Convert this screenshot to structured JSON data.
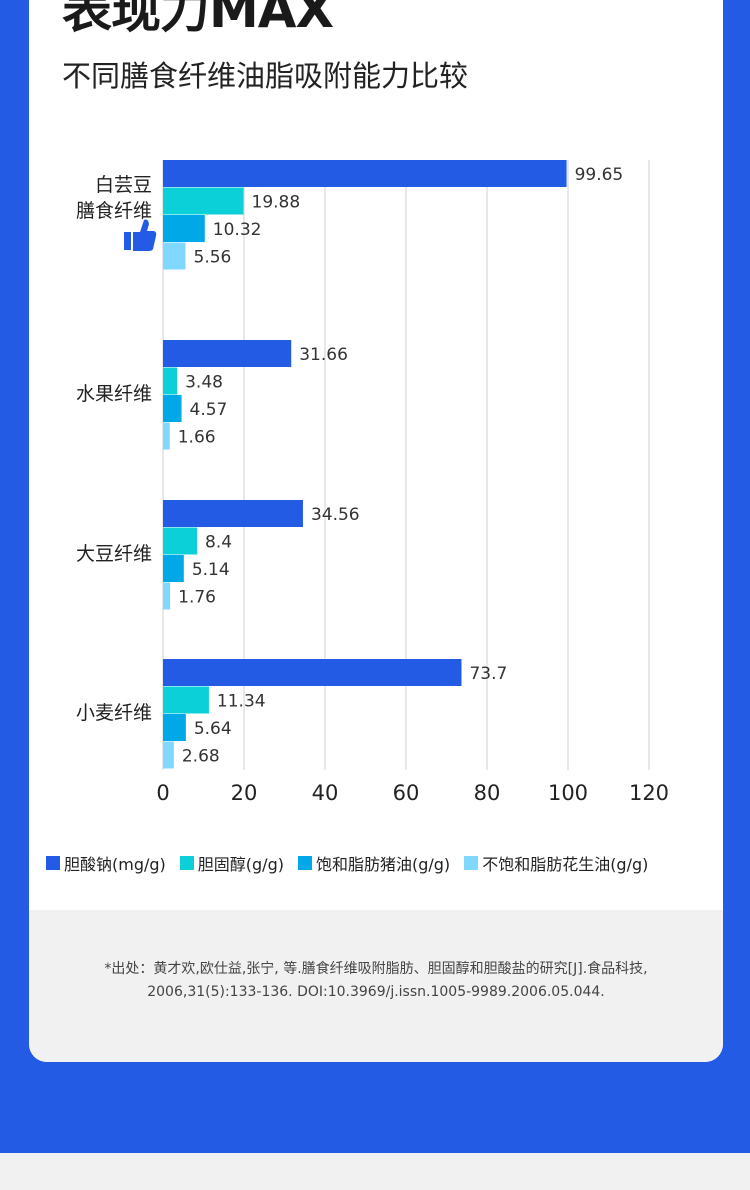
{
  "header": {
    "title": "表现力MAX",
    "subtitle": "不同膳食纤维油脂吸附能力比较"
  },
  "colors": {
    "background": "#245be4",
    "series": [
      "#245be4",
      "#0cd0d8",
      "#00a8e8",
      "#80d8ff"
    ]
  },
  "chart_data": {
    "type": "bar",
    "orientation": "horizontal",
    "categories": [
      "白芸豆膳食纤维",
      "水果纤维",
      "大豆纤维",
      "小麦纤维"
    ],
    "category_lines": [
      [
        "白芸豆",
        "膳食纤维"
      ],
      [
        "水果纤维"
      ],
      [
        "大豆纤维"
      ],
      [
        "小麦纤维"
      ]
    ],
    "highlight_icon": "thumbs-up-icon",
    "series": [
      {
        "name": "胆酸钠(mg/g)",
        "values": [
          99.65,
          31.66,
          34.56,
          73.7
        ]
      },
      {
        "name": "胆固醇(g/g)",
        "values": [
          19.88,
          3.48,
          8.4,
          11.34
        ]
      },
      {
        "name": "饱和脂肪猪油(g/g)",
        "values": [
          10.32,
          4.57,
          5.14,
          5.64
        ]
      },
      {
        "name": "不饱和脂肪花生油(g/g)",
        "values": [
          5.56,
          1.66,
          1.76,
          2.68
        ]
      }
    ],
    "xlim": [
      0,
      120
    ],
    "xticks": [
      "0",
      "20",
      "40",
      "60",
      "80",
      "100",
      "120"
    ],
    "grid": true,
    "legend": "bottom"
  },
  "footer": {
    "citation_line1": "*出处：黄才欢,欧仕益,张宁, 等.膳食纤维吸附脂肪、胆固醇和胆酸盐的研究[J].食品科技,",
    "citation_line2": "2006,31(5):133-136. DOI:10.3969/j.issn.1005-9989.2006.05.044."
  }
}
